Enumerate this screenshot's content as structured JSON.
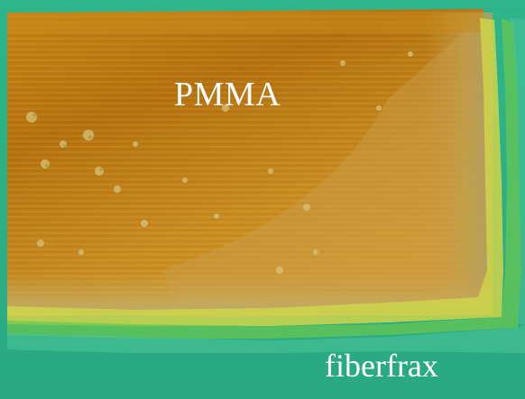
{
  "labels": {
    "top_material": "PMMA",
    "bottom_material": "fiberfrax"
  },
  "colors": {
    "pmma_dark": "#b6720d",
    "pmma_light": "#d79a26",
    "pmma_edge": "#bfa152",
    "transition_yellow": "#cfd54a",
    "transition_green": "#6bc84f",
    "fiberfrax_teal": "#2eb287",
    "fiberfrax_light": "#49c39a",
    "label_text": "#ffffff"
  }
}
